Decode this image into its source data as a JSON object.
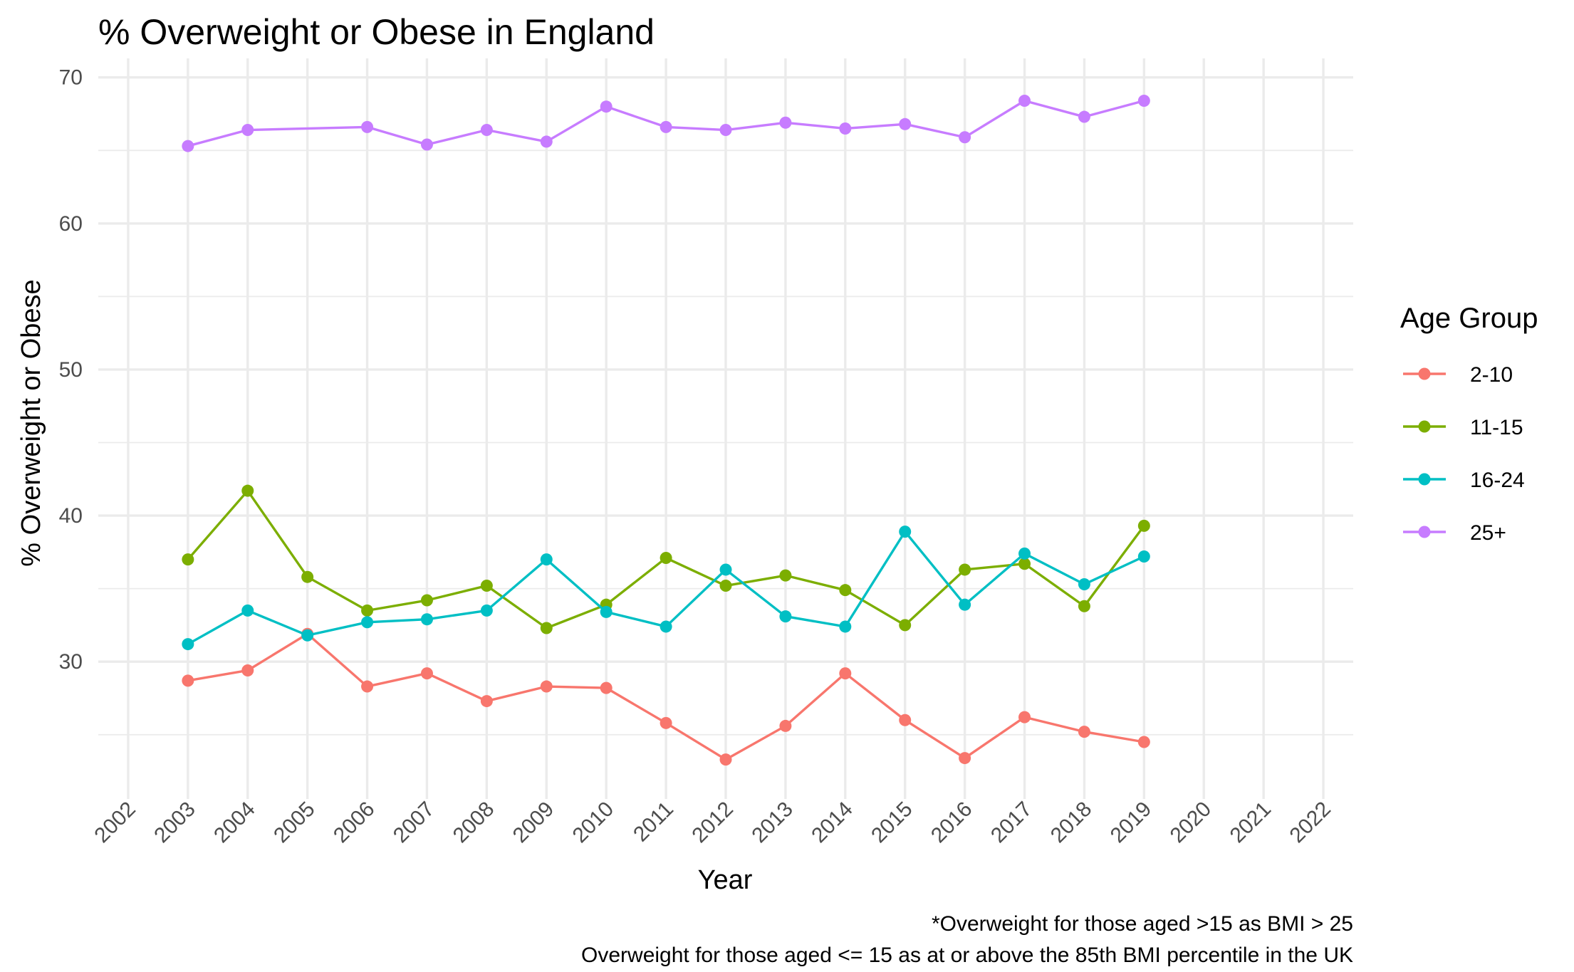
{
  "chart_data": {
    "type": "line",
    "title": "% Overweight or Obese in England",
    "xlabel": "Year",
    "ylabel": "% Overweight or Obese",
    "caption": [
      "*Overweight for those aged >15 as BMI > 25",
      "Overweight for those aged <= 15 as at or above the 85th BMI percentile in the UK"
    ],
    "x_ticks": [
      "2002",
      "2003",
      "2004",
      "2005",
      "2006",
      "2007",
      "2008",
      "2009",
      "2010",
      "2011",
      "2012",
      "2013",
      "2014",
      "2015",
      "2016",
      "2017",
      "2018",
      "2019",
      "2020",
      "2021",
      "2022"
    ],
    "y_ticks": [
      "30",
      "40",
      "50",
      "60",
      "70"
    ],
    "xlim": [
      2001.5,
      2022.5
    ],
    "ylim": [
      20.6,
      71.3
    ],
    "grid": true,
    "legend": {
      "title": "Age Group",
      "position": "right"
    },
    "x": [
      2003,
      2004,
      2005,
      2006,
      2007,
      2008,
      2009,
      2010,
      2011,
      2012,
      2013,
      2014,
      2015,
      2016,
      2017,
      2018,
      2019
    ],
    "series": [
      {
        "name": "2-10",
        "color": "#F8766D",
        "values": [
          28.7,
          29.4,
          31.9,
          28.3,
          29.2,
          27.3,
          28.3,
          28.2,
          25.8,
          23.3,
          25.6,
          29.2,
          26.0,
          23.4,
          26.2,
          25.2,
          24.5
        ]
      },
      {
        "name": "11-15",
        "color": "#7CAE00",
        "values": [
          37.0,
          41.7,
          35.8,
          33.5,
          34.2,
          35.2,
          32.3,
          33.9,
          37.1,
          35.2,
          35.9,
          34.9,
          32.5,
          36.3,
          36.7,
          33.8,
          39.3
        ]
      },
      {
        "name": "16-24",
        "color": "#00BFC4",
        "values": [
          31.2,
          33.5,
          31.8,
          32.7,
          32.9,
          33.5,
          37.0,
          33.4,
          32.4,
          36.3,
          33.1,
          32.4,
          38.9,
          33.9,
          37.4,
          35.3,
          37.2
        ]
      },
      {
        "name": "25+",
        "color": "#C77CFF",
        "values": [
          65.3,
          66.4,
          null,
          66.6,
          65.4,
          66.4,
          65.6,
          68.0,
          66.6,
          66.4,
          66.9,
          66.5,
          66.8,
          65.9,
          68.4,
          67.3,
          68.4
        ]
      }
    ]
  }
}
